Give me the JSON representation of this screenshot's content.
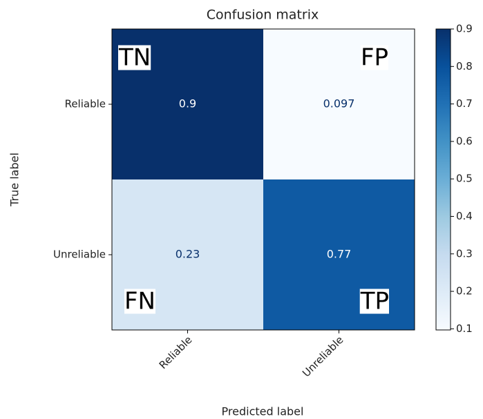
{
  "chart_data": {
    "type": "heatmap",
    "title": "Confusion matrix",
    "x_label": "Predicted label",
    "y_label": "True label",
    "x_categories": [
      "Reliable",
      "Unreliable"
    ],
    "y_categories": [
      "Reliable",
      "Unreliable"
    ],
    "values": [
      [
        0.9,
        0.097
      ],
      [
        0.23,
        0.77
      ]
    ],
    "colormap": "Blues",
    "clim": [
      0.097,
      0.9
    ],
    "colorbar_ticks": [
      0.1,
      0.2,
      0.3,
      0.4,
      0.5,
      0.6,
      0.7,
      0.8,
      0.9
    ],
    "annotations": [
      "TN",
      "FP",
      "FN",
      "TP"
    ]
  }
}
